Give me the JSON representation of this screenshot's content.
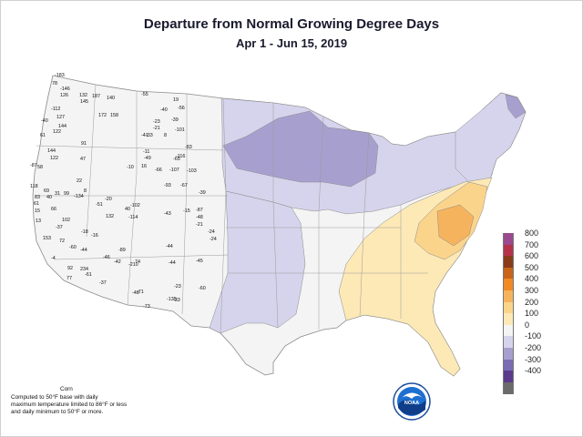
{
  "title": "Departure from Normal Growing Degree Days",
  "subtitle": "Apr 1 - Jun 15, 2019",
  "footnote": {
    "crop": "Corn",
    "lines": [
      "Computed to 50°F base with daily",
      "maximum temperature limited to 86°F or less",
      "and daily minimum to 50°F or more."
    ]
  },
  "logo_text": "NOAA",
  "legend": [
    {
      "label": "800",
      "color": "#9b4a8f"
    },
    {
      "label": "700",
      "color": "#b5334a"
    },
    {
      "label": "600",
      "color": "#8a3b1a"
    },
    {
      "label": "500",
      "color": "#c8641c"
    },
    {
      "label": "400",
      "color": "#f08a24"
    },
    {
      "label": "300",
      "color": "#f6b35e"
    },
    {
      "label": "200",
      "color": "#fbd48c"
    },
    {
      "label": "100",
      "color": "#fde9b6"
    },
    {
      "label": "0",
      "color": "#f4f4f4"
    },
    {
      "label": "-100",
      "color": "#d6d4ec"
    },
    {
      "label": "-200",
      "color": "#a7a0cf"
    },
    {
      "label": "-300",
      "color": "#7a6cb4"
    },
    {
      "label": "-400",
      "color": "#5b3a8c"
    },
    {
      "label": "",
      "color": "#6b6b6b"
    }
  ],
  "station_values": [
    "-183",
    "78",
    "-146",
    "126",
    "132",
    "187",
    "140",
    "145",
    "158",
    "172",
    "-112",
    "127",
    "-40",
    "144",
    "122",
    "91",
    "61",
    "144",
    "47",
    "-87",
    "122",
    "22",
    "58",
    "8",
    "118",
    "69",
    "31",
    "99",
    "-134",
    "-20",
    "40",
    "83",
    "40",
    "61",
    "15",
    "66",
    "102",
    "13",
    "-37",
    "-18",
    "132",
    "-114",
    "-89",
    "-210",
    "-44",
    "-102",
    "153",
    "72",
    "-60",
    "-4",
    "92",
    "234",
    "77",
    "-61",
    "-51",
    "-46",
    "-42",
    "74",
    "-37",
    "-71",
    "-44",
    "-48",
    "-135",
    "-73",
    "-23",
    "-33",
    "-55",
    "19",
    "-40",
    "-56",
    "-23",
    "-39",
    "-21",
    "-41",
    "-33",
    "8",
    "-101",
    "-11",
    "-49",
    "-10",
    "16",
    "-83",
    "-116",
    "-65",
    "-66",
    "-107",
    "-103",
    "-93",
    "-67",
    "-39",
    "-43",
    "-15",
    "-87",
    "-48",
    "-21",
    "-24",
    "-24",
    "-45",
    "-44",
    "-60",
    "-16"
  ]
}
